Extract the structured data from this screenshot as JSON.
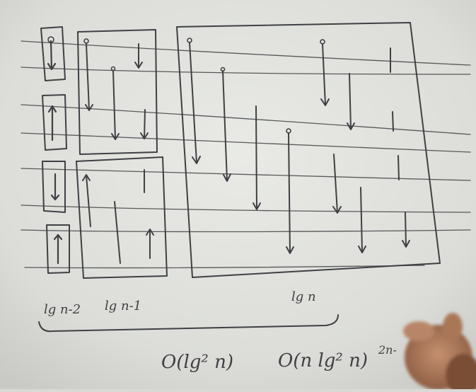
{
  "scene": {
    "subject": "whiteboard",
    "hand_label": "hand"
  },
  "labels": {
    "lg_n_minus_2": "lg n-2",
    "lg_n_minus_1": "lg n-1",
    "lg_n": "lg n",
    "o_lg2_n": "O(lg² n)",
    "o_n_lg2_n": "O(n lg² n)",
    "trailing": "2n-"
  },
  "colors": {
    "board": "#e4e5e1",
    "ink": "#3f4043",
    "skin": "#b07a5a"
  }
}
